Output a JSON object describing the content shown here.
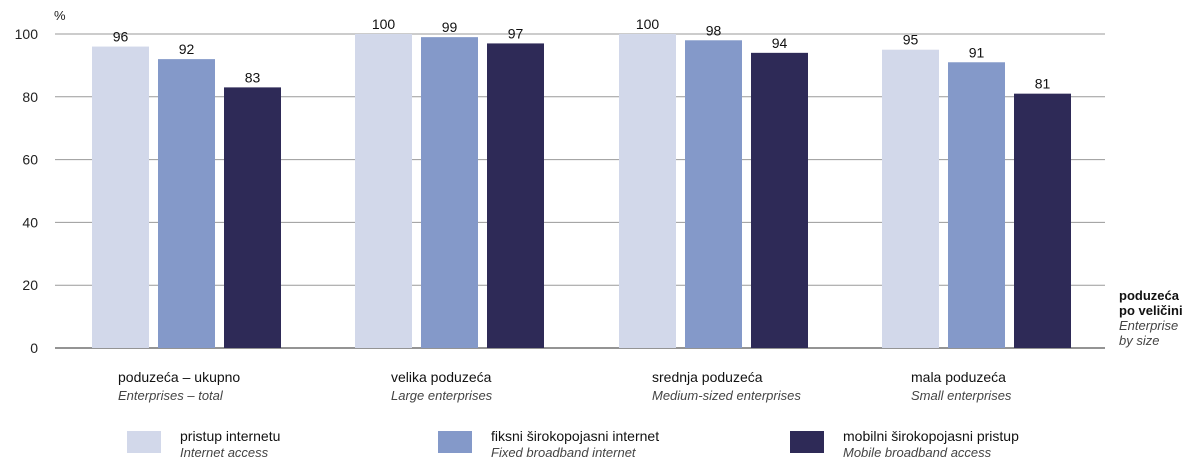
{
  "chart_data": {
    "type": "bar",
    "y_unit": "%",
    "ylim": [
      0,
      100
    ],
    "yticks": [
      0,
      20,
      40,
      60,
      80,
      100
    ],
    "grid": true,
    "legend_position": "bottom",
    "x_axis_label": {
      "main": [
        "poduzeća",
        "po veličini"
      ],
      "sub": [
        "Enterprise",
        "by size"
      ]
    },
    "categories": [
      {
        "main": "poduzeća – ukupno",
        "sub": "Enterprises – total"
      },
      {
        "main": "velika poduzeća",
        "sub": "Large enterprises"
      },
      {
        "main": "srednja poduzeća",
        "sub": "Medium-sized enterprises"
      },
      {
        "main": "mala poduzeća",
        "sub": "Small enterprises"
      }
    ],
    "series": [
      {
        "name": "pristup internetu",
        "name_sub": "Internet access",
        "color": "#d2d8ea",
        "values": [
          96,
          100,
          100,
          95
        ]
      },
      {
        "name": "fiksni širokopojasni internet",
        "name_sub": "Fixed broadband internet",
        "color": "#8499c9",
        "values": [
          92,
          99,
          98,
          91
        ]
      },
      {
        "name": "mobilni širokopojasni pristup",
        "name_sub": "Mobile broadband access",
        "color": "#2e2a57",
        "values": [
          83,
          97,
          94,
          81
        ]
      }
    ]
  }
}
